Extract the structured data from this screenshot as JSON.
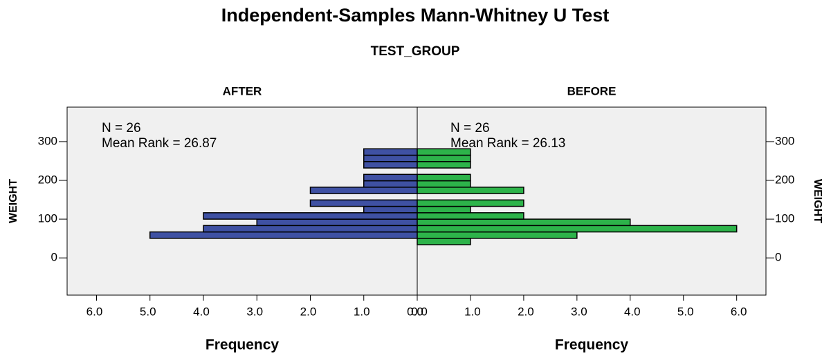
{
  "chart_data": {
    "type": "histogram",
    "title": "Independent-Samples Mann-Whitney U Test",
    "subtitle": "TEST_GROUP",
    "y_label": "WEIGHT",
    "x_label": "Frequency",
    "bins": [
      34,
      50.5,
      67,
      83.5,
      100,
      116.5,
      133,
      149.5,
      166,
      182.5,
      199,
      215.5,
      232,
      248.5,
      265,
      281.5
    ],
    "series": [
      {
        "name": "AFTER",
        "color": "#3f51a3",
        "values": [
          0,
          5,
          4,
          3,
          4,
          1,
          2,
          0,
          2,
          1,
          1,
          0,
          1,
          1,
          1
        ],
        "annotation": [
          "N = 26",
          "Mean Rank = 26.87"
        ]
      },
      {
        "name": "BEFORE",
        "color": "#2db34a",
        "values": [
          1,
          3,
          6,
          4,
          2,
          1,
          2,
          0,
          2,
          1,
          1,
          0,
          1,
          1,
          1
        ],
        "annotation": [
          "N = 26",
          "Mean Rank = 26.13"
        ]
      }
    ],
    "ylim": [
      -96,
      389
    ],
    "yticks": [
      0,
      100,
      200,
      300
    ],
    "xlim": [
      0,
      6.55
    ],
    "xticks": [
      {
        "value": 0,
        "label": "0.0"
      },
      {
        "value": 1,
        "label": "1.0"
      },
      {
        "value": 2,
        "label": "2.0"
      },
      {
        "value": 3,
        "label": "3.0"
      },
      {
        "value": 4,
        "label": "4.0"
      },
      {
        "value": 5,
        "label": "5.0"
      },
      {
        "value": 6,
        "label": "6.0"
      }
    ]
  }
}
